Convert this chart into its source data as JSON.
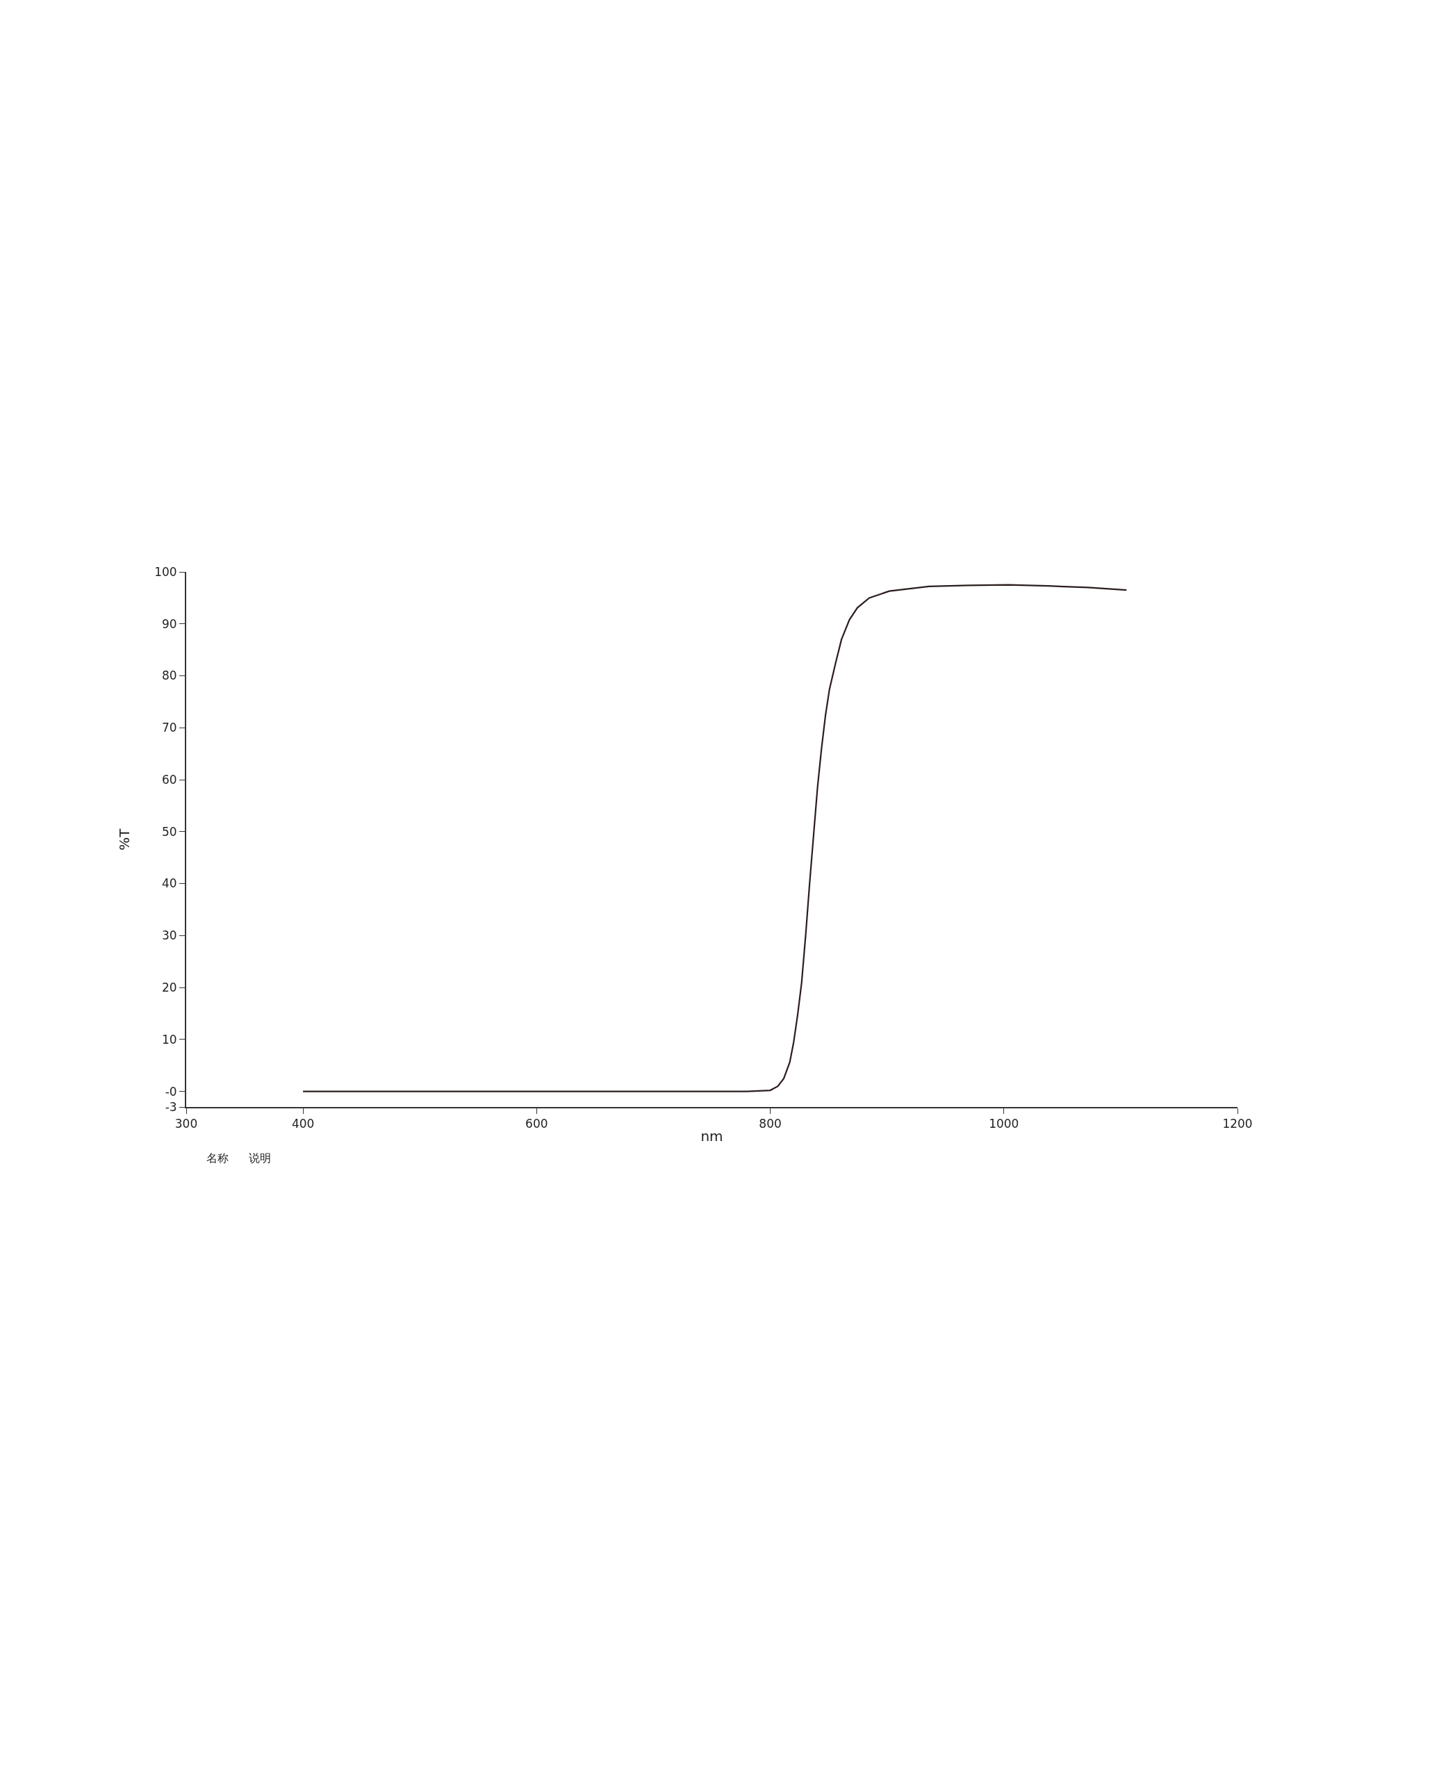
{
  "chart_data": {
    "type": "line",
    "xlabel": "nm",
    "ylabel": "%T",
    "series": [
      {
        "color": "#2b1d1d",
        "x": [
          400,
          600,
          780,
          790,
          800,
          806.5,
          811.6,
          816.7,
          820,
          823.5,
          826.9,
          830.3,
          833.7,
          837.1,
          840.5,
          843.9,
          847.3,
          850.7,
          855.9,
          861,
          867.8,
          874.6,
          884.8,
          901.9,
          935.9,
          970,
          1004,
          1038,
          1072,
          1105
        ],
        "values": [
          0,
          0,
          0,
          0.1,
          0.2,
          1.0,
          2.5,
          5.6,
          9.4,
          14.8,
          21,
          30,
          40,
          49.3,
          58.6,
          66,
          72.4,
          77.4,
          82.4,
          87,
          90.8,
          93.1,
          95,
          96.3,
          97.2,
          97.4,
          97.5,
          97.3,
          97,
          96.5
        ]
      }
    ],
    "xlim": [
      300,
      1200
    ],
    "xticks": [
      300,
      400,
      600,
      800,
      1000,
      1200
    ],
    "ylim": [
      -3,
      100
    ],
    "yticks": [
      {
        "value": -3,
        "label": "-3"
      },
      {
        "value": 0,
        "label": "-0"
      },
      10,
      20,
      30,
      40,
      50,
      60,
      70,
      80,
      90,
      100
    ],
    "marker": "none",
    "line_style": "solid",
    "annotations": [
      "名称",
      "说明"
    ]
  }
}
